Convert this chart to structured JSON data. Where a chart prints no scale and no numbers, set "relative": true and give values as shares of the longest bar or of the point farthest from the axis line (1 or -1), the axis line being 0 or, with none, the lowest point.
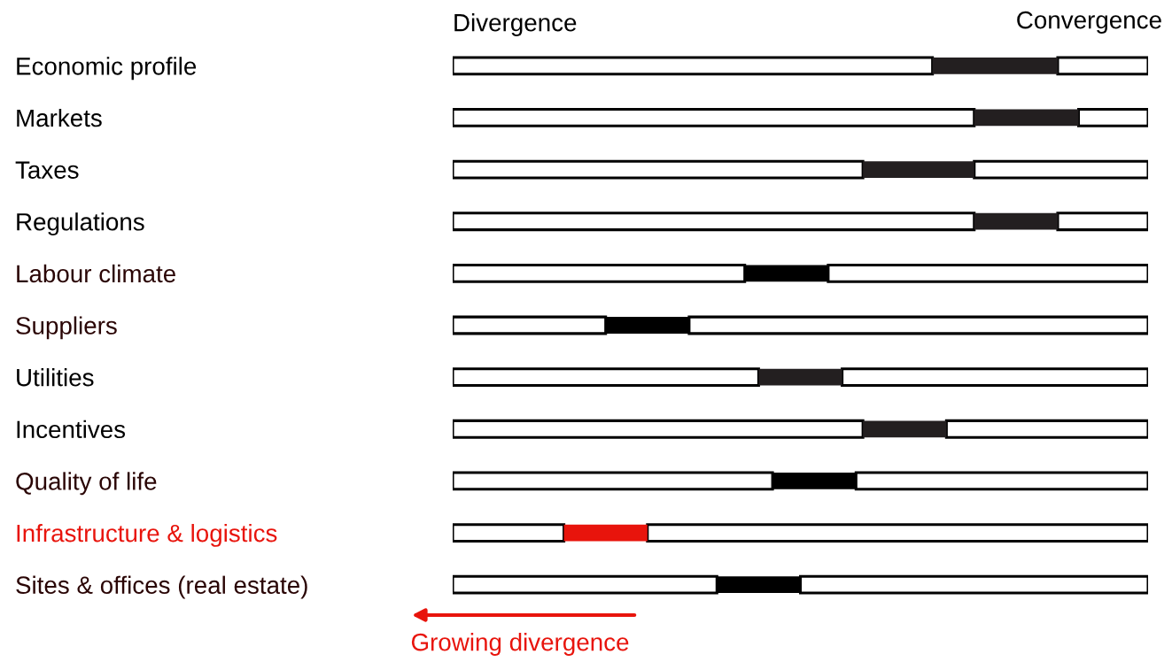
{
  "chart_data": {
    "type": "bar",
    "orientation": "horizontal",
    "stacked": true,
    "relative": true,
    "legend": false,
    "grid": false,
    "categories": [
      "Economic profile",
      "Markets",
      "Taxes",
      "Regulations",
      "Labour climate",
      "Suppliers",
      "Utilities",
      "Incentives",
      "Quality of life",
      "Infrastructure & logistics",
      "Sites & offices (real estate)"
    ],
    "series": [
      {
        "color": "#ffffff",
        "values": [
          0.69,
          0.75,
          0.59,
          0.75,
          0.42,
          0.22,
          0.44,
          0.59,
          0.46,
          0.16,
          0.38
        ]
      },
      {
        "colors": [
          "#231f20",
          "#231f20",
          "#231f20",
          "#231f20",
          "#000000",
          "#000000",
          "#231f20",
          "#231f20",
          "#000000",
          "#e8140c",
          "#000000"
        ],
        "values": [
          0.18,
          0.15,
          0.16,
          0.12,
          0.12,
          0.12,
          0.12,
          0.12,
          0.12,
          0.12,
          0.12
        ]
      },
      {
        "color": "#ffffff",
        "values": [
          0.13,
          0.1,
          0.25,
          0.13,
          0.46,
          0.66,
          0.44,
          0.29,
          0.42,
          0.72,
          0.5
        ]
      }
    ],
    "annotations": [
      "Divergence",
      "Convergence",
      "Growing divergence"
    ]
  }
}
